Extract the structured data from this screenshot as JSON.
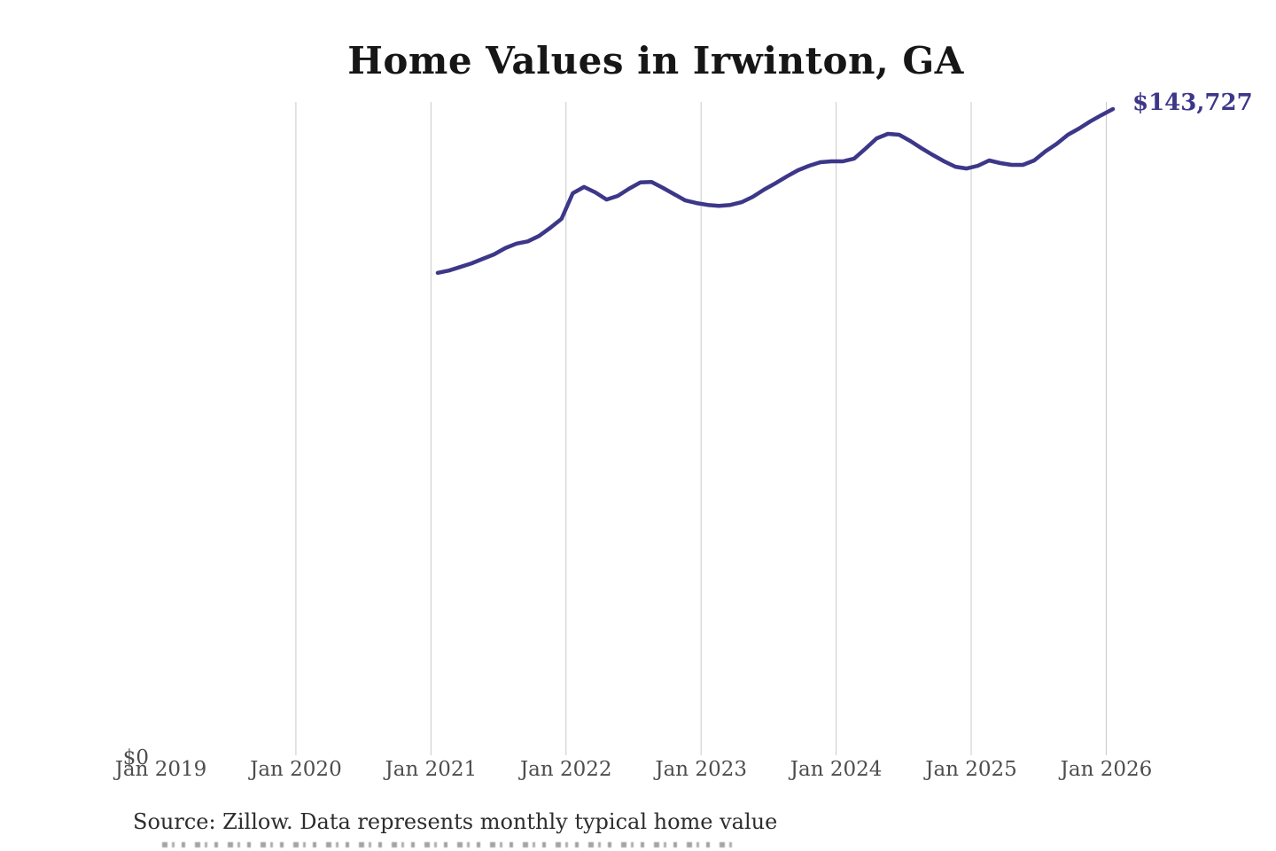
{
  "source": "Source: Zillow. Data represents monthly typical home value",
  "colors": {
    "line": "#3d3789",
    "end_label": "#3d3789",
    "gridline": "#c9c9c9",
    "title": "#161616",
    "axis_labels": "#4d4d4d",
    "source_text": "#2d2d2d"
  },
  "chart_data": {
    "type": "line",
    "title": "Home Values in Irwinton, GA",
    "series_name": "Monthly typical home value",
    "end_label": "$143,727",
    "grid": "vertical-only",
    "legend": "none",
    "y_axis": {
      "min": 0,
      "zero_label": "$0",
      "max_value_shown": 143727
    },
    "x_ticks": [
      "Jan 2019",
      "Jan 2020",
      "Jan 2021",
      "Jan 2022",
      "Jan 2023",
      "Jan 2024",
      "Jan 2025",
      "Jan 2026"
    ],
    "x_ticks_with_gridline": [
      "Jan 2020",
      "Jan 2021",
      "Jan 2022",
      "Jan 2023",
      "Jan 2024",
      "Jan 2025",
      "Jan 2026"
    ],
    "x": [
      "2021-01",
      "2021-02",
      "2021-03",
      "2021-04",
      "2021-05",
      "2021-06",
      "2021-07",
      "2021-08",
      "2021-09",
      "2021-10",
      "2021-11",
      "2021-12",
      "2022-01",
      "2022-02",
      "2022-03",
      "2022-04",
      "2022-05",
      "2022-06",
      "2022-07",
      "2022-08",
      "2022-09",
      "2022-10",
      "2022-11",
      "2022-12",
      "2023-01",
      "2023-02",
      "2023-03",
      "2023-04",
      "2023-05",
      "2023-06",
      "2023-07",
      "2023-08",
      "2023-09",
      "2023-10",
      "2023-11",
      "2023-12",
      "2024-01",
      "2024-02",
      "2024-03",
      "2024-04",
      "2024-05",
      "2024-06",
      "2024-07",
      "2024-08",
      "2024-09",
      "2024-10",
      "2024-11",
      "2024-12",
      "2025-01",
      "2025-02",
      "2025-03",
      "2025-04",
      "2025-05",
      "2025-06",
      "2025-07",
      "2025-08",
      "2025-09",
      "2025-10",
      "2025-11",
      "2025-12",
      "2026-01"
    ],
    "values": [
      107300,
      107800,
      108600,
      109400,
      110400,
      111400,
      112800,
      113800,
      114300,
      115500,
      117300,
      119300,
      125000,
      126400,
      125200,
      123600,
      124400,
      126000,
      127400,
      127500,
      126200,
      124800,
      123400,
      122800,
      122400,
      122200,
      122400,
      123000,
      124200,
      125800,
      127200,
      128700,
      130100,
      131100,
      131900,
      132100,
      132100,
      132700,
      134900,
      137200,
      138200,
      138000,
      136600,
      135000,
      133500,
      132100,
      130900,
      130500,
      131100,
      132300,
      131700,
      131300,
      131300,
      132300,
      134300,
      136000,
      138000,
      139400,
      141000,
      142400,
      143727
    ]
  }
}
